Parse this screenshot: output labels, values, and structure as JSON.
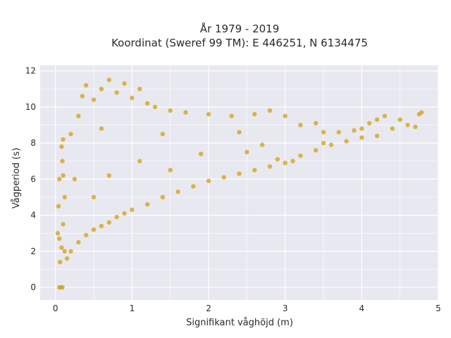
{
  "chart_data": {
    "type": "scatter",
    "title_lines": [
      "År 1979 - 2019",
      "Koordinat (Sweref 99 TM): E 446251, N 6134475"
    ],
    "xlabel": "Signifikant våghöjd (m)",
    "ylabel": "Vågperiod (s)",
    "xlim": [
      -0.2,
      5.0
    ],
    "ylim": [
      -0.7,
      12.3
    ],
    "xticks": [
      0,
      1,
      2,
      3,
      4,
      5
    ],
    "yticks": [
      0,
      2,
      4,
      6,
      8,
      10,
      12
    ],
    "grid": true,
    "legend": "none",
    "marker_color": "#d4a41c",
    "plot_bg": "#e8e8f0",
    "points": [
      [
        0.05,
        0.0
      ],
      [
        0.07,
        0.0
      ],
      [
        0.09,
        0.0
      ],
      [
        0.06,
        1.4
      ],
      [
        0.08,
        2.2
      ],
      [
        0.1,
        3.5
      ],
      [
        0.12,
        5.0
      ],
      [
        0.1,
        6.2
      ],
      [
        0.09,
        7.0
      ],
      [
        0.08,
        7.8
      ],
      [
        0.1,
        8.2
      ],
      [
        0.15,
        1.6
      ],
      [
        0.2,
        2.0
      ],
      [
        0.3,
        2.5
      ],
      [
        0.4,
        2.9
      ],
      [
        0.5,
        3.2
      ],
      [
        0.6,
        3.4
      ],
      [
        0.7,
        3.6
      ],
      [
        0.8,
        3.9
      ],
      [
        0.9,
        4.1
      ],
      [
        1.0,
        4.3
      ],
      [
        1.2,
        4.6
      ],
      [
        1.4,
        5.0
      ],
      [
        1.6,
        5.3
      ],
      [
        1.8,
        5.6
      ],
      [
        2.0,
        5.9
      ],
      [
        2.2,
        6.1
      ],
      [
        2.4,
        6.3
      ],
      [
        2.6,
        6.5
      ],
      [
        2.8,
        6.7
      ],
      [
        3.0,
        6.9
      ],
      [
        0.2,
        8.5
      ],
      [
        0.3,
        9.5
      ],
      [
        0.35,
        10.6
      ],
      [
        0.4,
        11.2
      ],
      [
        0.5,
        10.4
      ],
      [
        0.6,
        11.0
      ],
      [
        0.7,
        11.5
      ],
      [
        0.8,
        10.8
      ],
      [
        0.9,
        11.3
      ],
      [
        1.0,
        10.5
      ],
      [
        1.1,
        11.0
      ],
      [
        1.2,
        10.2
      ],
      [
        1.3,
        10.0
      ],
      [
        1.5,
        9.8
      ],
      [
        1.7,
        9.7
      ],
      [
        2.0,
        9.6
      ],
      [
        2.3,
        9.5
      ],
      [
        2.6,
        9.6
      ],
      [
        2.8,
        9.8
      ],
      [
        3.0,
        9.5
      ],
      [
        3.2,
        9.0
      ],
      [
        3.4,
        9.1
      ],
      [
        3.5,
        8.6
      ],
      [
        3.7,
        8.6
      ],
      [
        3.9,
        8.7
      ],
      [
        4.0,
        8.8
      ],
      [
        4.1,
        9.1
      ],
      [
        4.2,
        9.3
      ],
      [
        4.3,
        9.5
      ],
      [
        4.5,
        9.3
      ],
      [
        4.6,
        9.0
      ],
      [
        4.7,
        8.9
      ],
      [
        4.78,
        9.7
      ],
      [
        4.75,
        9.6
      ],
      [
        4.4,
        8.8
      ],
      [
        4.2,
        8.4
      ],
      [
        4.0,
        8.3
      ],
      [
        3.8,
        8.1
      ],
      [
        3.6,
        7.9
      ],
      [
        3.4,
        7.6
      ],
      [
        3.2,
        7.3
      ],
      [
        3.1,
        7.0
      ],
      [
        2.9,
        7.1
      ],
      [
        0.05,
        2.7
      ],
      [
        0.04,
        4.5
      ],
      [
        0.05,
        6.0
      ],
      [
        0.03,
        3.0
      ],
      [
        0.12,
        2.0
      ],
      [
        0.5,
        5.0
      ],
      [
        1.5,
        6.5
      ],
      [
        2.5,
        7.5
      ],
      [
        3.5,
        8.0
      ],
      [
        0.6,
        8.8
      ],
      [
        1.4,
        8.5
      ],
      [
        2.4,
        8.6
      ],
      [
        0.25,
        6.0
      ],
      [
        0.7,
        6.2
      ],
      [
        1.1,
        7.0
      ],
      [
        1.9,
        7.4
      ],
      [
        2.7,
        7.9
      ]
    ]
  }
}
